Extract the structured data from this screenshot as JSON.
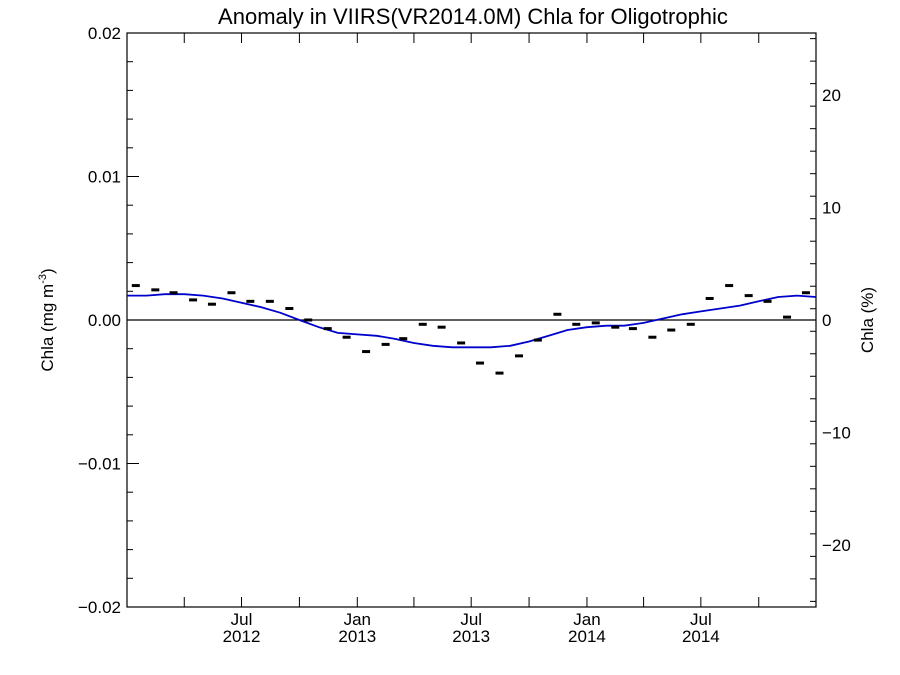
{
  "chart_data": {
    "type": "line",
    "title": "Anomaly in VIIRS(VR2014.0M) Chla for Oligotrophic",
    "ylabel_left": "Chla (mg m",
    "ylabel_left_superscript": "-3",
    "ylabel_left_close": ")",
    "ylabel_right": "Chla (%)",
    "x_start": "2012-01-01",
    "xlim": [
      "2012-01-01",
      "2014-12-31"
    ],
    "ylim_left": [
      -0.02,
      0.02
    ],
    "ylim_right": [
      -25.5,
      25.5
    ],
    "left_ticks": [
      {
        "value": 0.02,
        "label": "0.02"
      },
      {
        "value": 0.01,
        "label": "0.01"
      },
      {
        "value": 0.0,
        "label": "0.00"
      },
      {
        "value": -0.01,
        "label": "−0.01"
      },
      {
        "value": -0.02,
        "label": "−0.02"
      }
    ],
    "right_ticks": [
      {
        "value": 20,
        "label": "20"
      },
      {
        "value": 10,
        "label": "10"
      },
      {
        "value": 0,
        "label": "0"
      },
      {
        "value": -10,
        "label": "−10"
      },
      {
        "value": -20,
        "label": "−20"
      }
    ],
    "x_major_ticks": [
      {
        "date": "2012-07-01",
        "label1": "Jul",
        "label2": "2012"
      },
      {
        "date": "2013-01-01",
        "label1": "Jan",
        "label2": "2013"
      },
      {
        "date": "2013-07-01",
        "label1": "Jul",
        "label2": "2013"
      },
      {
        "date": "2014-01-01",
        "label1": "Jan",
        "label2": "2014"
      },
      {
        "date": "2014-07-01",
        "label1": "Jul",
        "label2": "2014"
      }
    ],
    "zero_line": 0.0,
    "series": [
      {
        "kind": "markers",
        "color": "#000000",
        "x": [
          "2012-01-15",
          "2012-02-15",
          "2012-03-15",
          "2012-04-15",
          "2012-05-15",
          "2012-06-15",
          "2012-07-15",
          "2012-08-15",
          "2012-09-15",
          "2012-10-15",
          "2012-11-15",
          "2012-12-15",
          "2013-01-15",
          "2013-02-15",
          "2013-03-15",
          "2013-04-15",
          "2013-05-15",
          "2013-06-15",
          "2013-07-15",
          "2013-08-15",
          "2013-09-15",
          "2013-10-15",
          "2013-11-15",
          "2013-12-15",
          "2014-01-15",
          "2014-02-15",
          "2014-03-15",
          "2014-04-15",
          "2014-05-15",
          "2014-06-15",
          "2014-07-15",
          "2014-08-15",
          "2014-09-15",
          "2014-10-15",
          "2014-11-15",
          "2014-12-15"
        ],
        "y": [
          0.0024,
          0.0021,
          0.0019,
          0.0014,
          0.0011,
          0.0019,
          0.0013,
          0.0013,
          0.0008,
          0.0,
          -0.0006,
          -0.0012,
          -0.0022,
          -0.0017,
          -0.0013,
          -0.0003,
          -0.0005,
          -0.0016,
          -0.003,
          -0.0037,
          -0.0025,
          -0.0014,
          0.0004,
          -0.0003,
          -0.0002,
          -0.0005,
          -0.0006,
          -0.0012,
          -0.0007,
          -0.0003,
          0.0015,
          0.0024,
          0.0017,
          0.0013,
          0.0002,
          0.0019
        ]
      },
      {
        "kind": "line",
        "color": "#0000cc",
        "x": [
          "2012-01-01",
          "2012-02-01",
          "2012-03-01",
          "2012-04-01",
          "2012-05-01",
          "2012-06-01",
          "2012-07-01",
          "2012-08-01",
          "2012-09-01",
          "2012-10-01",
          "2012-11-01",
          "2012-12-01",
          "2013-01-01",
          "2013-02-01",
          "2013-03-01",
          "2013-04-01",
          "2013-05-01",
          "2013-06-01",
          "2013-07-01",
          "2013-08-01",
          "2013-09-01",
          "2013-10-01",
          "2013-11-01",
          "2013-12-01",
          "2014-01-01",
          "2014-02-01",
          "2014-03-01",
          "2014-04-01",
          "2014-05-01",
          "2014-06-01",
          "2014-07-01",
          "2014-08-01",
          "2014-09-01",
          "2014-10-01",
          "2014-11-01",
          "2014-12-01",
          "2014-12-31"
        ],
        "y": [
          0.0017,
          0.0017,
          0.0018,
          0.0018,
          0.0017,
          0.0015,
          0.0012,
          0.0009,
          0.0005,
          0.0,
          -0.0005,
          -0.0009,
          -0.001,
          -0.0011,
          -0.0013,
          -0.0016,
          -0.0018,
          -0.0019,
          -0.0019,
          -0.0019,
          -0.0018,
          -0.0015,
          -0.0011,
          -0.0007,
          -0.0005,
          -0.0004,
          -0.0004,
          -0.0002,
          0.0001,
          0.0004,
          0.0006,
          0.0008,
          0.001,
          0.0013,
          0.0016,
          0.0017,
          0.0016
        ]
      }
    ]
  }
}
